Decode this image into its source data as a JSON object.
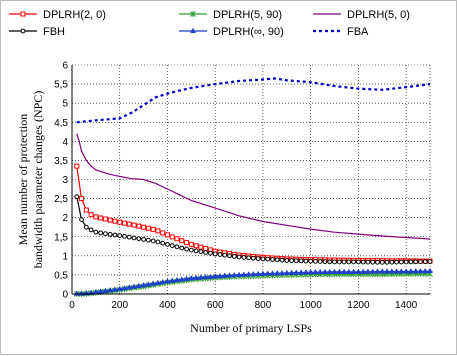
{
  "chart_data": {
    "type": "line",
    "title": "",
    "xlabel": "Number of primary LSPs",
    "ylabel": "Mean number of protection bandwidth parameter changes (NPC)",
    "ylabel_lines": [
      "Mean number of protection",
      "bandwidth parameter changes (NPC)"
    ],
    "xlim": [
      0,
      1500
    ],
    "ylim": [
      0,
      6
    ],
    "xticks": [
      0,
      200,
      400,
      600,
      800,
      1000,
      1200,
      1400
    ],
    "yticks": [
      0,
      0.5,
      1,
      1.5,
      2,
      2.5,
      3,
      3.5,
      4,
      4.5,
      5,
      5.5,
      6
    ],
    "ytick_labels": [
      "0",
      "0,5",
      "1",
      "1,5",
      "2",
      "2,5",
      "3",
      "3,5",
      "4",
      "4,5",
      "5",
      "5,5",
      "6"
    ],
    "grid": true,
    "legend_position": "top",
    "series": [
      {
        "name": "DPLRH(2, 0)",
        "color": "#ff0000",
        "marker": "square",
        "dash": "solid",
        "x": [
          20,
          40,
          60,
          80,
          100,
          150,
          200,
          250,
          300,
          350,
          400,
          450,
          500,
          600,
          700,
          800,
          900,
          1000,
          1100,
          1200,
          1300,
          1400,
          1500
        ],
        "y": [
          3.35,
          2.5,
          2.2,
          2.08,
          2.02,
          1.95,
          1.88,
          1.82,
          1.75,
          1.68,
          1.55,
          1.42,
          1.3,
          1.12,
          1.02,
          0.96,
          0.92,
          0.9,
          0.89,
          0.88,
          0.87,
          0.87,
          0.86
        ]
      },
      {
        "name": "DPLRH(5, 90)",
        "color": "#2ca02c",
        "marker": "star",
        "dash": "solid",
        "x": [
          20,
          40,
          60,
          80,
          100,
          150,
          200,
          250,
          300,
          350,
          400,
          450,
          500,
          600,
          700,
          800,
          900,
          1000,
          1100,
          1200,
          1300,
          1400,
          1500
        ],
        "y": [
          0.0,
          0.0,
          0.01,
          0.02,
          0.04,
          0.07,
          0.11,
          0.16,
          0.2,
          0.25,
          0.3,
          0.34,
          0.38,
          0.43,
          0.46,
          0.48,
          0.5,
          0.51,
          0.52,
          0.52,
          0.52,
          0.53,
          0.53
        ]
      },
      {
        "name": "DPLRH(5, 0)",
        "color": "#800080",
        "marker": "none",
        "dash": "solid",
        "x": [
          20,
          30,
          40,
          60,
          80,
          100,
          150,
          200,
          250,
          300,
          350,
          400,
          450,
          500,
          600,
          700,
          800,
          900,
          1000,
          1100,
          1200,
          1300,
          1400,
          1500
        ],
        "y": [
          4.2,
          4.0,
          3.75,
          3.5,
          3.35,
          3.25,
          3.15,
          3.08,
          3.02,
          3.0,
          2.9,
          2.75,
          2.6,
          2.45,
          2.25,
          2.05,
          1.9,
          1.8,
          1.7,
          1.62,
          1.57,
          1.52,
          1.48,
          1.44
        ]
      },
      {
        "name": "FBH",
        "color": "#000000",
        "marker": "circle",
        "dash": "solid",
        "x": [
          20,
          40,
          60,
          80,
          100,
          150,
          200,
          250,
          300,
          350,
          400,
          450,
          500,
          600,
          700,
          800,
          900,
          1000,
          1100,
          1200,
          1300,
          1400,
          1500
        ],
        "y": [
          2.55,
          1.95,
          1.75,
          1.68,
          1.62,
          1.57,
          1.53,
          1.48,
          1.43,
          1.38,
          1.3,
          1.22,
          1.15,
          1.05,
          0.97,
          0.92,
          0.88,
          0.86,
          0.84,
          0.84,
          0.83,
          0.84,
          0.85
        ]
      },
      {
        "name": "DPLRH(∞, 90)",
        "color": "#1f3fcf",
        "marker": "triangle",
        "dash": "solid",
        "x": [
          20,
          40,
          60,
          80,
          100,
          150,
          200,
          250,
          300,
          350,
          400,
          450,
          500,
          600,
          700,
          800,
          900,
          1000,
          1100,
          1200,
          1300,
          1400,
          1500
        ],
        "y": [
          0.01,
          0.01,
          0.02,
          0.03,
          0.05,
          0.09,
          0.13,
          0.18,
          0.23,
          0.28,
          0.33,
          0.37,
          0.41,
          0.46,
          0.5,
          0.53,
          0.55,
          0.57,
          0.58,
          0.58,
          0.59,
          0.59,
          0.6
        ]
      },
      {
        "name": "FBA",
        "color": "#0000cc",
        "marker": "none",
        "dash": "dotted",
        "x": [
          20,
          100,
          200,
          250,
          300,
          350,
          400,
          450,
          500,
          600,
          700,
          800,
          850,
          900,
          1000,
          1100,
          1200,
          1300,
          1400,
          1500
        ],
        "y": [
          4.5,
          4.55,
          4.6,
          4.75,
          4.95,
          5.15,
          5.25,
          5.33,
          5.4,
          5.5,
          5.58,
          5.62,
          5.65,
          5.6,
          5.55,
          5.45,
          5.38,
          5.35,
          5.42,
          5.5
        ]
      }
    ]
  }
}
